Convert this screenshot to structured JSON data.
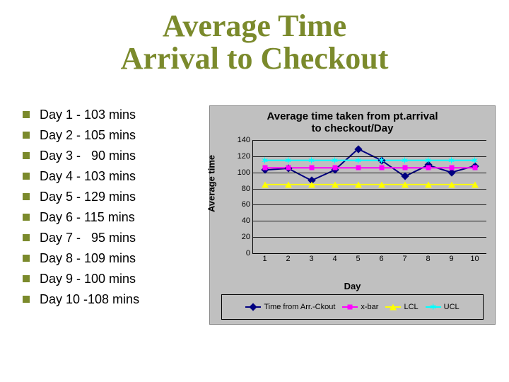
{
  "title": "Average Time\nArrival to Checkout",
  "title_color": "#7b8a2c",
  "title_fontsize": 44,
  "bullet_marker_color": "#7b8a2c",
  "bullets": [
    "Day 1 - 103 mins",
    "Day 2 - 105 mins",
    "Day 3 -   90 mins",
    "Day 4 - 103 mins",
    "Day 5 - 129 mins",
    "Day 6 - 115 mins",
    "Day 7 -   95 mins",
    "Day 8 - 109 mins",
    "Day 9 - 100 mins",
    "Day 10 -108 mins"
  ],
  "bullet_fontsize": 18,
  "chart": {
    "type": "line",
    "title": "Average time taken from pt.arrival\nto checkout/Day",
    "title_fontsize": 15,
    "xlabel": "Day",
    "ylabel": "Average time",
    "label_fontsize": 13,
    "background_color": "#c0c0c0",
    "plot_background": "#c0c0c0",
    "grid_color": "#000000",
    "border_color": "#888888",
    "axis_color": "#000000",
    "tick_fontsize": 11,
    "x_categories": [
      "1",
      "2",
      "3",
      "4",
      "5",
      "6",
      "7",
      "8",
      "9",
      "10"
    ],
    "ylim": [
      0,
      140
    ],
    "ytick_step": 20,
    "yticks": [
      0,
      20,
      40,
      60,
      80,
      100,
      120,
      140
    ],
    "line_width": 2,
    "marker_size": 8,
    "series": [
      {
        "name": "Time from Arr.-Ckout",
        "legend_label": "Time from Arr.-Ckout",
        "color": "#000080",
        "marker": "diamond",
        "values": [
          103,
          105,
          90,
          103,
          129,
          115,
          95,
          109,
          100,
          108
        ]
      },
      {
        "name": "x-bar",
        "legend_label": "x-bar",
        "color": "#ff00ff",
        "marker": "square",
        "values": [
          105.7,
          105.7,
          105.7,
          105.7,
          105.7,
          105.7,
          105.7,
          105.7,
          105.7,
          105.7
        ]
      },
      {
        "name": "LCL",
        "legend_label": "LCL",
        "color": "#ffff00",
        "marker": "triangle",
        "values": [
          85,
          85,
          85,
          85,
          85,
          85,
          85,
          85,
          85,
          85
        ]
      },
      {
        "name": "UCL",
        "legend_label": "UCL",
        "color": "#00ffff",
        "marker": "x",
        "values": [
          115,
          115,
          115,
          115,
          115,
          115,
          115,
          115,
          115,
          115
        ]
      }
    ]
  }
}
